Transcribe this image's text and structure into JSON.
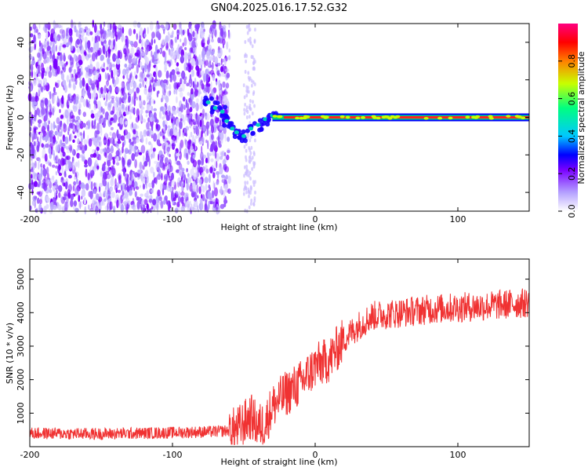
{
  "title": "GN04.2025.016.17.52.G32",
  "chart_data": [
    {
      "type": "heatmap",
      "xlabel": "Height of straight line (km)",
      "ylabel": "Frequency (Hz)",
      "xlim": [
        -200,
        150
      ],
      "ylim": [
        -50,
        50
      ],
      "xticks": [
        "-200",
        "-100",
        "0",
        "100"
      ],
      "yticks": [
        "-40",
        "-20",
        "0",
        "20",
        "40"
      ],
      "colorbar": {
        "label": "Normalized spectral amplitude",
        "range": [
          0,
          1
        ],
        "ticks": [
          "0.0",
          "0.2",
          "0.4",
          "0.6",
          "0.8"
        ],
        "colors": [
          "#ffffff",
          "#b4a0ff",
          "#7a00ff",
          "#0000ff",
          "#00c8ff",
          "#00ff80",
          "#c8ff00",
          "#ff8000",
          "#ff0000",
          "#ff0080"
        ]
      },
      "features": {
        "noise_region_x": [
          -200,
          -60
        ],
        "transition_x": [
          -60,
          -30
        ],
        "carrier_line_x": [
          -30,
          150
        ],
        "carrier_frequency_hz": 0
      }
    },
    {
      "type": "line",
      "xlabel": "Height of straight line (km)",
      "ylabel": "SNR (10 * v/v)",
      "xlim": [
        -200,
        150
      ],
      "ylim": [
        0,
        5600
      ],
      "xticks": [
        "-200",
        "-100",
        "0",
        "100"
      ],
      "yticks": [
        "1000",
        "2000",
        "3000",
        "4000",
        "5000"
      ],
      "series": [
        {
          "color": "#f03232",
          "trend_x": [
            -200,
            -150,
            -100,
            -70,
            -55,
            -45,
            -40,
            -35,
            -30,
            -20,
            -10,
            0,
            10,
            20,
            30,
            40,
            60,
            80,
            100,
            120,
            150
          ],
          "trend_y": [
            400,
            380,
            420,
            450,
            500,
            900,
            600,
            700,
            1200,
            1600,
            1900,
            2400,
            2600,
            3200,
            3600,
            3900,
            4000,
            4100,
            4150,
            4200,
            4300
          ]
        }
      ]
    }
  ]
}
